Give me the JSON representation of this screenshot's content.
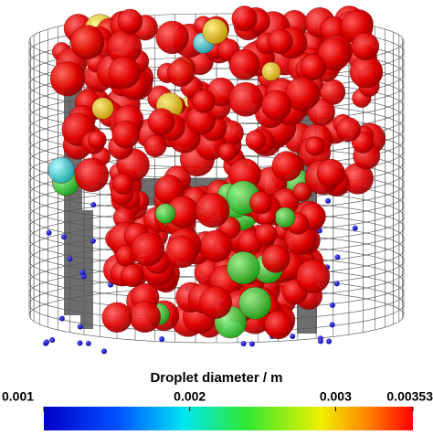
{
  "colorbar": {
    "title": "Droplet diameter / m",
    "range": [
      0.001,
      0.00353
    ],
    "ticks": [
      0.001,
      0.002,
      0.003,
      0.00353
    ]
  }
}
